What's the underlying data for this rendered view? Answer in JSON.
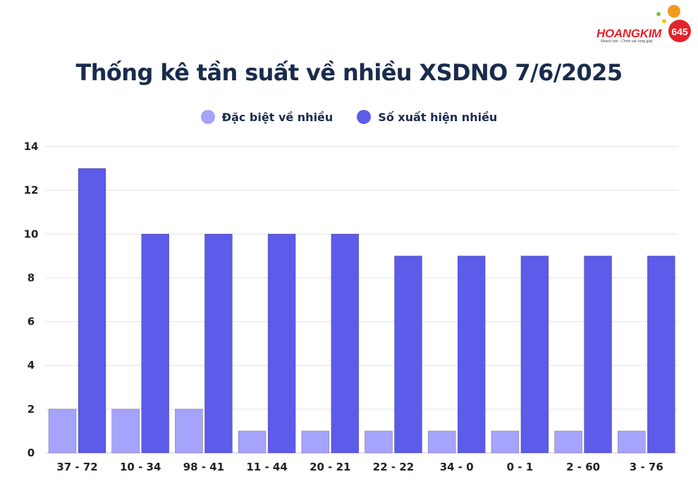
{
  "logo": {
    "name": "HOANGKIM",
    "badge": "645",
    "tagline": "Nhanh hơn - Chính xác từng giây"
  },
  "title": "Thống kê tần suất về nhiều XSDNO 7/6/2025",
  "colors": {
    "series1": "#a5a3fb",
    "series2": "#5d5bea",
    "title": "#1a2b4c",
    "grid": "#e2e2e2",
    "logo_red": "#e3232b",
    "logo_orange": "#f39a1e"
  },
  "chart_data": {
    "type": "bar",
    "title": "Thống kê tần suất về nhiều XSDNO 7/6/2025",
    "categories": [
      "37 - 72",
      "10 - 34",
      "98 - 41",
      "11 - 44",
      "20 - 21",
      "22 - 22",
      "34 - 0",
      "0 - 1",
      "2 - 60",
      "3 - 76"
    ],
    "series": [
      {
        "name": "Đặc biệt về nhiều",
        "values": [
          2,
          2,
          2,
          1,
          1,
          1,
          1,
          1,
          1,
          1
        ]
      },
      {
        "name": "Số xuất hiện nhiều",
        "values": [
          13,
          10,
          10,
          10,
          10,
          9,
          9,
          9,
          9,
          9
        ]
      }
    ],
    "ylim": [
      0,
      14
    ],
    "yticks": [
      0,
      2,
      4,
      6,
      8,
      10,
      12,
      14
    ],
    "grid": true,
    "legend_position": "top-center",
    "xlabel": "",
    "ylabel": ""
  }
}
